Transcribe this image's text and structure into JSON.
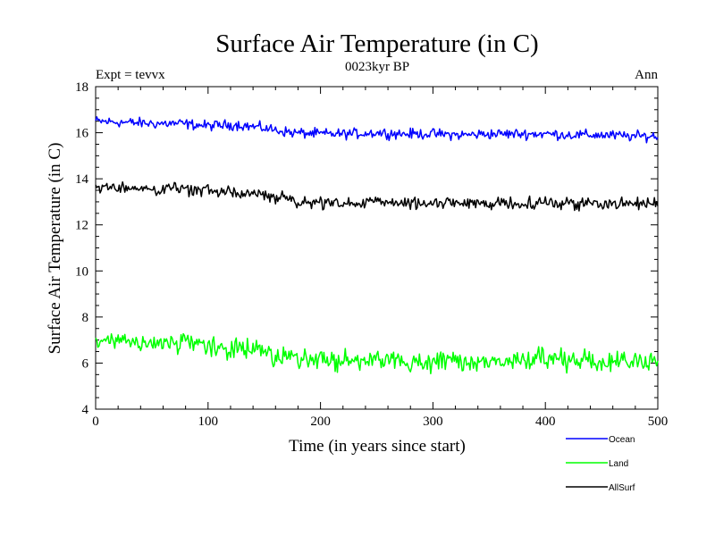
{
  "chart_data": {
    "type": "line",
    "title": "Surface Air Temperature (in C)",
    "subtitle": "0023kyr BP",
    "left_note": "Expt = tevvx",
    "right_note": "Ann",
    "xlabel": "Time (in years since start)",
    "ylabel": "Surface Air Temperature (in C)",
    "xlim": [
      0,
      500
    ],
    "ylim": [
      4,
      18
    ],
    "x_ticks": [
      0,
      100,
      200,
      300,
      400,
      500
    ],
    "y_ticks": [
      4,
      6,
      8,
      10,
      12,
      14,
      16,
      18
    ],
    "grid": false,
    "legend_position": "bottom-right, outside plot",
    "series": [
      {
        "name": "Ocean",
        "color": "#0000ff",
        "x": [
          0,
          25,
          50,
          75,
          100,
          125,
          150,
          175,
          200,
          225,
          250,
          275,
          300,
          325,
          350,
          375,
          400,
          425,
          450,
          475,
          500
        ],
        "values": [
          16.5,
          16.45,
          16.4,
          16.4,
          16.3,
          16.35,
          16.2,
          16.0,
          15.95,
          15.95,
          16.0,
          15.95,
          15.95,
          15.9,
          15.95,
          15.95,
          15.95,
          15.9,
          15.9,
          15.85,
          15.85
        ]
      },
      {
        "name": "Land",
        "color": "#00ff00",
        "x": [
          0,
          25,
          50,
          75,
          100,
          125,
          150,
          175,
          200,
          225,
          250,
          275,
          300,
          325,
          350,
          375,
          400,
          425,
          450,
          475,
          500
        ],
        "values": [
          6.9,
          6.9,
          6.75,
          6.95,
          6.7,
          6.6,
          6.5,
          6.3,
          6.1,
          6.05,
          6.15,
          6.05,
          6.1,
          6.0,
          6.05,
          6.1,
          6.15,
          6.1,
          6.1,
          6.05,
          6.15
        ]
      },
      {
        "name": "AllSurf",
        "color": "#000000",
        "x": [
          0,
          25,
          50,
          75,
          100,
          125,
          150,
          175,
          200,
          225,
          250,
          275,
          300,
          325,
          350,
          375,
          400,
          425,
          450,
          475,
          500
        ],
        "values": [
          13.65,
          13.6,
          13.55,
          13.6,
          13.45,
          13.4,
          13.3,
          13.05,
          12.95,
          12.9,
          13.0,
          12.95,
          12.95,
          12.9,
          12.95,
          12.95,
          12.95,
          12.95,
          12.95,
          12.9,
          12.95
        ]
      }
    ]
  }
}
